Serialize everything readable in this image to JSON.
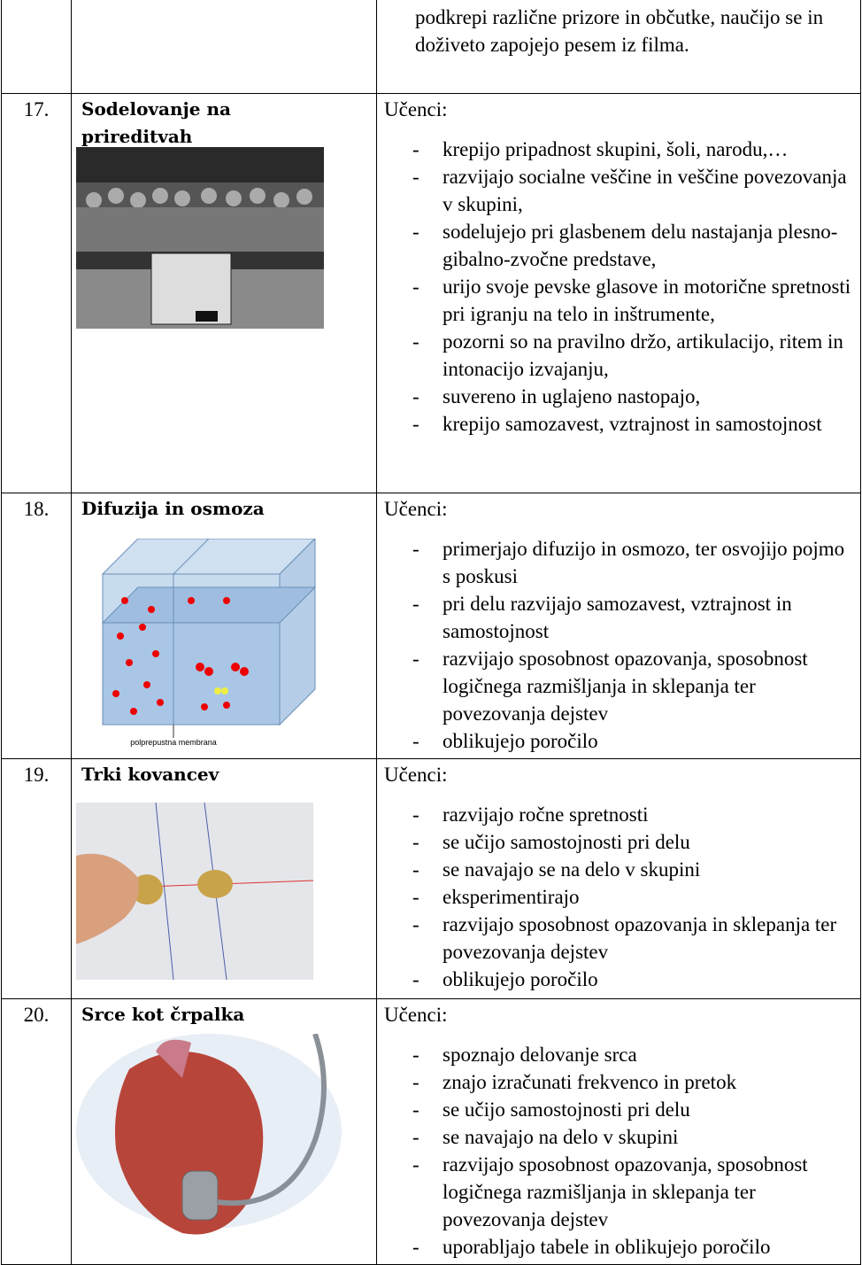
{
  "table": {
    "top_row": {
      "text": "podkrepi različne prizore in občutke, naučijo se in doživeto zapojejo pesem iz filma."
    },
    "rows": [
      {
        "number": "17.",
        "title": "Sodelovanje na prireditvah",
        "intro": "Učenci:",
        "items": [
          "krepijo pripadnost skupini, šoli, narodu,…",
          "razvijajo socialne veščine in veščine povezovanja v skupini,",
          "sodelujejo pri glasbenem delu nastajanja plesno-gibalno-zvočne predstave,",
          "urijo svoje pevske glasove in motorične spretnosti pri igranju na telo in inštrumente,",
          "pozorni so na pravilno držo, artikulacijo, ritem in intonacijo izvajanju,",
          "suvereno in uglajeno nastopajo,",
          "krepijo samozavest, vztrajnost in samostojnost"
        ]
      },
      {
        "number": "18.",
        "title": "Difuzija in osmoza",
        "image_caption": "polprepustna membrana",
        "intro": "Učenci:",
        "items": [
          "primerjajo difuzijo in osmozo, ter osvojijo pojmo s poskusi",
          "pri delu razvijajo samozavest, vztrajnost in samostojnost",
          "razvijajo sposobnost opazovanja, sposobnost logičnega razmišljanja in sklepanja ter   povezovanja dejstev",
          "oblikujejo poročilo"
        ]
      },
      {
        "number": "19.",
        "title": "Trki kovancev",
        "intro": "Učenci:",
        "items": [
          "razvijajo ročne spretnosti",
          "se učijo samostojnosti pri delu",
          "se navajajo se na delo v skupini",
          "eksperimentirajo",
          "razvijajo sposobnost opazovanja in sklepanja ter povezovanja dejstev",
          "oblikujejo poročilo"
        ]
      },
      {
        "number": "20.",
        "title": "Srce kot črpalka",
        "intro": "Učenci:",
        "items": [
          "spoznajo delovanje srca",
          "znajo izračunati frekvenco in pretok",
          "se učijo samostojnosti pri delu",
          "se navajajo na delo v skupini",
          "razvijajo sposobnost opazovanja, sposobnost logičnega razmišljanja in sklepanja ter   povezovanja dejstev",
          "uporabljajo tabele in oblikujejo poročilo"
        ]
      }
    ]
  }
}
